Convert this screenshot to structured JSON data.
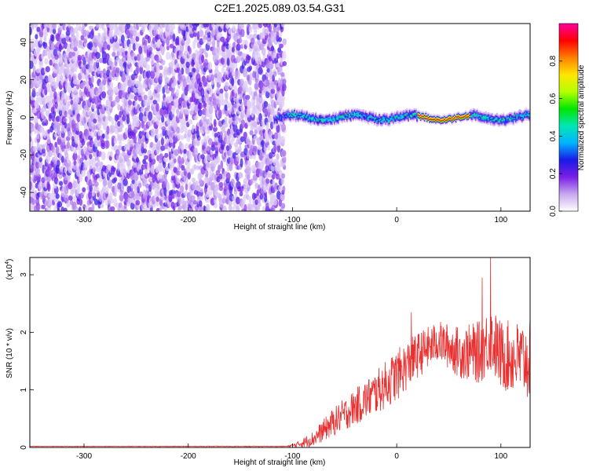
{
  "title": "C2E1.2025.089.03.54.G31",
  "chart_data": [
    {
      "type": "heatmap",
      "xlabel": "Height of straight line (km)",
      "ylabel": "Frequency (Hz)",
      "xlim": [
        -352,
        128
      ],
      "ylim": [
        -50,
        50
      ],
      "xticks": [
        -300,
        -200,
        -100,
        0,
        100
      ],
      "yticks": [
        -40,
        -20,
        0,
        20,
        40
      ],
      "colorbar": {
        "label": "Normalized spectral amplitude",
        "range": [
          0,
          1
        ],
        "ticks": [
          "0.0",
          "0.2",
          "0.4",
          "0.6",
          "0.8"
        ],
        "colors": [
          "#ffffff",
          "#c7a8f0",
          "#7b1fe6",
          "#1a1ae6",
          "#00b4ff",
          "#00e6b4",
          "#00e600",
          "#b4ff00",
          "#ffe600",
          "#ff8000",
          "#ff0000",
          "#ff00a0"
        ]
      },
      "regions": [
        {
          "name": "noise",
          "x_range": [
            -352,
            -108
          ],
          "frequency_range": [
            -50,
            50
          ],
          "amplitude": [
            0.05,
            0.25
          ]
        },
        {
          "name": "signal",
          "x_range": [
            -118,
            128
          ],
          "frequency_center": 0,
          "frequency_halfwidth": 4,
          "amplitude_peak": 0.9,
          "peak_x": [
            20,
            70
          ]
        }
      ]
    },
    {
      "type": "line",
      "xlabel": "Height of straight line (km)",
      "ylabel": "SNR (10 * v/v)",
      "y_multiplier": "(x10",
      "y_multiplier_exp": "4",
      "xlim": [
        -352,
        128
      ],
      "ylim": [
        0,
        3.3
      ],
      "xticks": [
        -300,
        -200,
        -100,
        0,
        100
      ],
      "yticks": [
        0,
        1,
        2,
        3
      ],
      "color": "#e83030",
      "envelope": [
        {
          "x": -352,
          "y": 0.02
        },
        {
          "x": -105,
          "y": 0.02
        },
        {
          "x": -95,
          "y": 0.05
        },
        {
          "x": -80,
          "y": 0.15
        },
        {
          "x": -60,
          "y": 0.45
        },
        {
          "x": -40,
          "y": 0.7
        },
        {
          "x": -20,
          "y": 0.95
        },
        {
          "x": 0,
          "y": 1.25
        },
        {
          "x": 20,
          "y": 1.6
        },
        {
          "x": 40,
          "y": 1.85
        },
        {
          "x": 60,
          "y": 1.65
        },
        {
          "x": 80,
          "y": 1.65
        },
        {
          "x": 90,
          "y": 1.9
        },
        {
          "x": 100,
          "y": 1.6
        },
        {
          "x": 128,
          "y": 1.5
        }
      ],
      "noise_amplitude": [
        {
          "x": -352,
          "y": 0.004
        },
        {
          "x": -105,
          "y": 0.006
        },
        {
          "x": -90,
          "y": 0.08
        },
        {
          "x": -60,
          "y": 0.25
        },
        {
          "x": 0,
          "y": 0.45
        },
        {
          "x": 40,
          "y": 0.35
        },
        {
          "x": 80,
          "y": 0.55
        },
        {
          "x": 128,
          "y": 0.7
        }
      ],
      "peaks": [
        {
          "x": 90,
          "y": 3.3
        },
        {
          "x": 14,
          "y": 2.35
        },
        {
          "x": 82,
          "y": 2.95
        }
      ]
    }
  ]
}
